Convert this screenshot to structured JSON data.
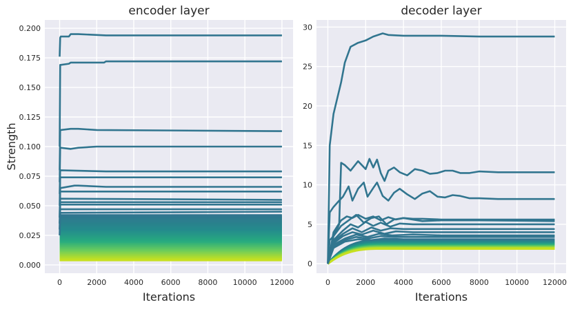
{
  "chart_data": [
    {
      "type": "line",
      "title": "encoder layer",
      "xlabel": "Iterations",
      "ylabel": "Strength",
      "xlim": [
        -800,
        12600
      ],
      "ylim": [
        -0.007,
        0.207
      ],
      "xticks": [
        0,
        2000,
        4000,
        6000,
        8000,
        10000,
        12000
      ],
      "xtick_labels": [
        "0",
        "2000",
        "4000",
        "6000",
        "8000",
        "10000",
        "12000"
      ],
      "yticks": [
        0.0,
        0.025,
        0.05,
        0.075,
        0.1,
        0.125,
        0.15,
        0.175,
        0.2
      ],
      "ytick_labels": [
        "0.000",
        "0.025",
        "0.050",
        "0.075",
        "0.100",
        "0.125",
        "0.150",
        "0.175",
        "0.200"
      ],
      "grid": true,
      "colormap": "viridis (teal #31758f to yellow-green #c6e020)",
      "highlighted_series": [
        {
          "x": [
            0,
            30,
            60,
            500,
            600,
            1000,
            2500,
            12000
          ],
          "y": [
            0.176,
            0.192,
            0.193,
            0.193,
            0.195,
            0.195,
            0.194,
            0.194
          ]
        },
        {
          "x": [
            0,
            30,
            60,
            500,
            600,
            2400,
            2500,
            12000
          ],
          "y": [
            0.1,
            0.169,
            0.169,
            0.17,
            0.171,
            0.171,
            0.172,
            0.172
          ]
        },
        {
          "x": [
            0,
            30,
            60,
            600,
            1000,
            2000,
            12000
          ],
          "y": [
            0.08,
            0.114,
            0.114,
            0.115,
            0.115,
            0.114,
            0.113
          ]
        },
        {
          "x": [
            0,
            30,
            60,
            600,
            1000,
            2000,
            12000
          ],
          "y": [
            0.07,
            0.099,
            0.099,
            0.098,
            0.099,
            0.1,
            0.1
          ]
        },
        {
          "x": [
            0,
            30,
            60,
            2500,
            12000
          ],
          "y": [
            0.06,
            0.08,
            0.08,
            0.079,
            0.079
          ]
        },
        {
          "x": [
            0,
            30,
            60,
            12000
          ],
          "y": [
            0.05,
            0.074,
            0.074,
            0.074
          ]
        },
        {
          "x": [
            0,
            30,
            60,
            800,
            1000,
            2500,
            12000
          ],
          "y": [
            0.04,
            0.065,
            0.065,
            0.067,
            0.067,
            0.066,
            0.066
          ]
        },
        {
          "x": [
            0,
            30,
            60,
            12000
          ],
          "y": [
            0.04,
            0.062,
            0.062,
            0.062
          ]
        },
        {
          "x": [
            0,
            30,
            60,
            12000
          ],
          "y": [
            0.035,
            0.056,
            0.056,
            0.055
          ]
        },
        {
          "x": [
            0,
            30,
            60,
            12000
          ],
          "y": [
            0.035,
            0.053,
            0.053,
            0.053
          ]
        },
        {
          "x": [
            0,
            30,
            60,
            12000
          ],
          "y": [
            0.03,
            0.051,
            0.051,
            0.051
          ]
        },
        {
          "x": [
            0,
            30,
            60,
            12000
          ],
          "y": [
            0.03,
            0.047,
            0.047,
            0.047
          ]
        },
        {
          "x": [
            0,
            30,
            60,
            12000
          ],
          "y": [
            0.025,
            0.044,
            0.044,
            0.045
          ]
        }
      ],
      "bulk_band": {
        "count": 45,
        "x": [
          0,
          12000
        ],
        "y_min": 0.004,
        "y_max": 0.042
      }
    },
    {
      "type": "line",
      "title": "decoder layer",
      "xlabel": "Iterations",
      "ylabel": "",
      "xlim": [
        -600,
        12600
      ],
      "ylim": [
        -1.2,
        30.9
      ],
      "xticks": [
        0,
        2000,
        4000,
        6000,
        8000,
        10000,
        12000
      ],
      "xtick_labels": [
        "0",
        "2000",
        "4000",
        "6000",
        "8000",
        "10000",
        "12000"
      ],
      "yticks": [
        0,
        5,
        10,
        15,
        20,
        25,
        30
      ],
      "ytick_labels": [
        "0",
        "5",
        "10",
        "15",
        "20",
        "25",
        "30"
      ],
      "grid": true,
      "highlighted_series": [
        {
          "x": [
            0,
            100,
            300,
            500,
            700,
            900,
            1200,
            1600,
            2000,
            2400,
            2900,
            3200,
            4000,
            6000,
            8000,
            10000,
            12000
          ],
          "y": [
            0,
            15,
            19,
            21,
            23,
            25.5,
            27.5,
            28,
            28.3,
            28.8,
            29.2,
            29.0,
            28.9,
            28.9,
            28.8,
            28.8,
            28.8
          ]
        },
        {
          "x": [
            0,
            100,
            300,
            600,
            700,
            900,
            1200,
            1600,
            2000,
            2200,
            2400,
            2600,
            2800,
            3000,
            3200,
            3500,
            3800,
            4200,
            4600,
            5000,
            5400,
            5800,
            6200,
            6600,
            7000,
            7500,
            8000,
            9000,
            10000,
            11000,
            12000
          ],
          "y": [
            0,
            3,
            3.5,
            5,
            12.8,
            12.5,
            11.8,
            13,
            12,
            13.3,
            12.2,
            13.2,
            11.5,
            10.5,
            11.8,
            12.2,
            11.6,
            11.2,
            12.0,
            11.8,
            11.4,
            11.5,
            11.8,
            11.8,
            11.5,
            11.5,
            11.7,
            11.6,
            11.6,
            11.6,
            11.6
          ]
        },
        {
          "x": [
            0,
            100,
            300,
            600,
            800,
            1100,
            1300,
            1600,
            1900,
            2100,
            2400,
            2600,
            2900,
            3200,
            3500,
            3800,
            4200,
            4600,
            5000,
            5400,
            5800,
            6200,
            6600,
            7000,
            7500,
            8000,
            9000,
            10000,
            12000
          ],
          "y": [
            0,
            6.5,
            7.2,
            8,
            8.5,
            9.8,
            8.0,
            9.5,
            10.3,
            8.5,
            9.6,
            10.3,
            8.6,
            8.0,
            9.0,
            9.5,
            8.8,
            8.2,
            8.9,
            9.2,
            8.5,
            8.4,
            8.7,
            8.6,
            8.3,
            8.3,
            8.2,
            8.2,
            8.2
          ]
        },
        {
          "x": [
            0,
            300,
            700,
            1000,
            1300,
            1600,
            2000,
            2400,
            2800,
            3200,
            3600,
            4000,
            4500,
            5000,
            6000,
            8000,
            12000
          ],
          "y": [
            0,
            4,
            5.5,
            6.0,
            5.8,
            6.2,
            5.7,
            6.0,
            5.5,
            5.9,
            5.6,
            5.8,
            5.7,
            5.7,
            5.6,
            5.6,
            5.6
          ]
        },
        {
          "x": [
            0,
            300,
            700,
            1100,
            1500,
            1900,
            2300,
            2700,
            3100,
            3500,
            4000,
            5000,
            6000,
            8000,
            12000
          ],
          "y": [
            0,
            3.5,
            4.8,
            5.5,
            6.2,
            5.2,
            5.8,
            6.0,
            5.0,
            5.6,
            5.8,
            5.4,
            5.5,
            5.5,
            5.4
          ]
        },
        {
          "x": [
            0,
            300,
            800,
            1200,
            1600,
            2000,
            2400,
            2800,
            3300,
            3800,
            4500,
            6000,
            8000,
            12000
          ],
          "y": [
            0,
            3,
            4.2,
            5.0,
            4.6,
            5.3,
            4.8,
            5.2,
            4.7,
            5.1,
            5.0,
            5.0,
            5.0,
            5.0
          ]
        },
        {
          "x": [
            0,
            300,
            800,
            1300,
            1800,
            2300,
            2800,
            3300,
            4000,
            5000,
            7000,
            12000
          ],
          "y": [
            0,
            2.8,
            3.8,
            4.5,
            4.0,
            4.6,
            4.2,
            4.5,
            4.4,
            4.4,
            4.4,
            4.4
          ]
        },
        {
          "x": [
            0,
            300,
            800,
            1300,
            1800,
            2400,
            3000,
            3600,
            4500,
            6000,
            12000
          ],
          "y": [
            0,
            2.6,
            3.5,
            4.0,
            3.7,
            4.2,
            3.8,
            4.1,
            4.0,
            4.0,
            4.0
          ]
        },
        {
          "x": [
            0,
            300,
            900,
            1500,
            2100,
            2700,
            3400,
            4500,
            6000,
            12000
          ],
          "y": [
            0,
            2.4,
            3.2,
            3.7,
            3.4,
            3.8,
            3.6,
            3.7,
            3.6,
            3.6
          ]
        },
        {
          "x": [
            0,
            300,
            900,
            1500,
            2100,
            2800,
            3600,
            5000,
            12000
          ],
          "y": [
            0,
            2.2,
            3.0,
            3.4,
            3.2,
            3.5,
            3.4,
            3.4,
            3.4
          ]
        },
        {
          "x": [
            0,
            300,
            900,
            1600,
            2300,
            3000,
            4000,
            6000,
            12000
          ],
          "y": [
            0,
            2.0,
            2.8,
            3.1,
            3.0,
            3.2,
            3.1,
            3.1,
            3.1
          ]
        }
      ],
      "bulk_band": {
        "count": 40,
        "x": [
          0,
          12000
        ],
        "y_min": 1.9,
        "y_max": 3.0,
        "x_saturate": 3000
      }
    }
  ]
}
